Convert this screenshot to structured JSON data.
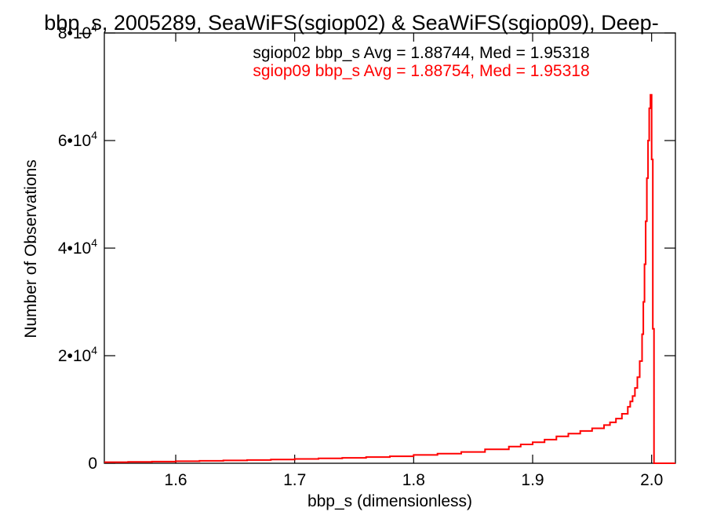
{
  "chart_data": {
    "type": "histogram",
    "title": "bbp_s, 2005289, SeaWiFS(sgiop02) & SeaWiFS(sgiop09), Deep-",
    "xlabel": "bbp_s (dimensionless)",
    "ylabel": "Number of Observations",
    "xlim": [
      1.54,
      2.02
    ],
    "ylim": [
      0,
      80000
    ],
    "x_ticks": [
      {
        "value": 1.6,
        "label": "1.6"
      },
      {
        "value": 1.7,
        "label": "1.7"
      },
      {
        "value": 1.8,
        "label": "1.8"
      },
      {
        "value": 1.9,
        "label": "1.9"
      },
      {
        "value": 2.0,
        "label": "2.0"
      }
    ],
    "y_ticks": [
      {
        "value": 0,
        "mantissa": "0",
        "exp": ""
      },
      {
        "value": 20000,
        "mantissa": "2•10",
        "exp": "4"
      },
      {
        "value": 40000,
        "mantissa": "4•10",
        "exp": "4"
      },
      {
        "value": 60000,
        "mantissa": "6•10",
        "exp": "4"
      },
      {
        "value": 80000,
        "mantissa": "8•10",
        "exp": "4"
      }
    ],
    "grid": false,
    "legend_position": "top",
    "legend": [
      {
        "text": "sgiop02 bbp_s Avg = 1.88744, Med = 1.95318",
        "color": "#000000"
      },
      {
        "text": "sgiop09 bbp_s Avg = 1.88754, Med = 1.95318",
        "color": "#ff0000"
      }
    ],
    "series": [
      {
        "color": "#ff0000",
        "points": [
          [
            1.54,
            200
          ],
          [
            1.56,
            250
          ],
          [
            1.58,
            300
          ],
          [
            1.6,
            380
          ],
          [
            1.62,
            450
          ],
          [
            1.64,
            520
          ],
          [
            1.66,
            600
          ],
          [
            1.68,
            700
          ],
          [
            1.7,
            800
          ],
          [
            1.72,
            900
          ],
          [
            1.74,
            1000
          ],
          [
            1.76,
            1150
          ],
          [
            1.78,
            1300
          ],
          [
            1.8,
            1550
          ],
          [
            1.82,
            1800
          ],
          [
            1.84,
            2100
          ],
          [
            1.86,
            2600
          ],
          [
            1.88,
            3100
          ],
          [
            1.89,
            3500
          ],
          [
            1.9,
            3900
          ],
          [
            1.91,
            4400
          ],
          [
            1.92,
            5000
          ],
          [
            1.93,
            5500
          ],
          [
            1.94,
            6000
          ],
          [
            1.95,
            6500
          ],
          [
            1.96,
            7100
          ],
          [
            1.965,
            7600
          ],
          [
            1.97,
            8300
          ],
          [
            1.975,
            9200
          ],
          [
            1.98,
            10500
          ],
          [
            1.982,
            11500
          ],
          [
            1.984,
            12500
          ],
          [
            1.986,
            14000
          ],
          [
            1.988,
            16000
          ],
          [
            1.99,
            19000
          ],
          [
            1.992,
            24000
          ],
          [
            1.993,
            30000
          ],
          [
            1.994,
            37000
          ],
          [
            1.995,
            45000
          ],
          [
            1.996,
            53000
          ],
          [
            1.997,
            60000
          ],
          [
            1.998,
            66000
          ],
          [
            1.999,
            68500
          ],
          [
            2.0,
            56500
          ],
          [
            2.001,
            25000
          ],
          [
            2.002,
            0
          ],
          [
            2.02,
            0
          ]
        ]
      }
    ]
  }
}
